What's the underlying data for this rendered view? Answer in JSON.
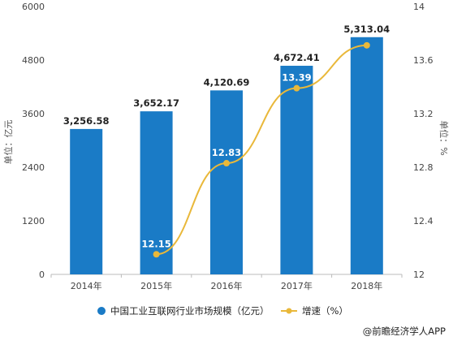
{
  "chart_data": {
    "type": "bar",
    "categories": [
      "2014年",
      "2015年",
      "2016年",
      "2017年",
      "2018年"
    ],
    "series": [
      {
        "name": "中国工业互联网行业市场规模（亿元）",
        "type": "bar",
        "axis": "left",
        "values": [
          3256.58,
          3652.17,
          4120.69,
          4672.41,
          5313.04
        ],
        "labels": [
          "3,256.58",
          "3,652.17",
          "4,120.69",
          "4,672.41",
          "5,313.04"
        ]
      },
      {
        "name": "增速（%）",
        "type": "line",
        "axis": "right",
        "values": [
          null,
          12.15,
          12.83,
          13.39,
          13.71
        ],
        "labels": [
          "",
          "12.15",
          "12.83",
          "13.39",
          ""
        ]
      }
    ],
    "y_left": {
      "label": "单位：亿元",
      "min": 0,
      "max": 6000,
      "ticks": [
        0,
        1200,
        2400,
        3600,
        4800,
        6000
      ],
      "tick_labels": [
        "0",
        "1200",
        "2400",
        "3600",
        "4800",
        "6000"
      ]
    },
    "y_right": {
      "label": "单位：%",
      "min": 12,
      "max": 14,
      "ticks": [
        12,
        12.4,
        12.8,
        13.2,
        13.6,
        14
      ],
      "tick_labels": [
        "12",
        "12.4",
        "12.8",
        "13.2",
        "13.6",
        "14"
      ]
    },
    "colors": {
      "bar": "#1a7bc6",
      "line": "#e9b83a"
    },
    "legend_position": "bottom",
    "grid": false
  },
  "source": "@前瞻经济学人APP"
}
